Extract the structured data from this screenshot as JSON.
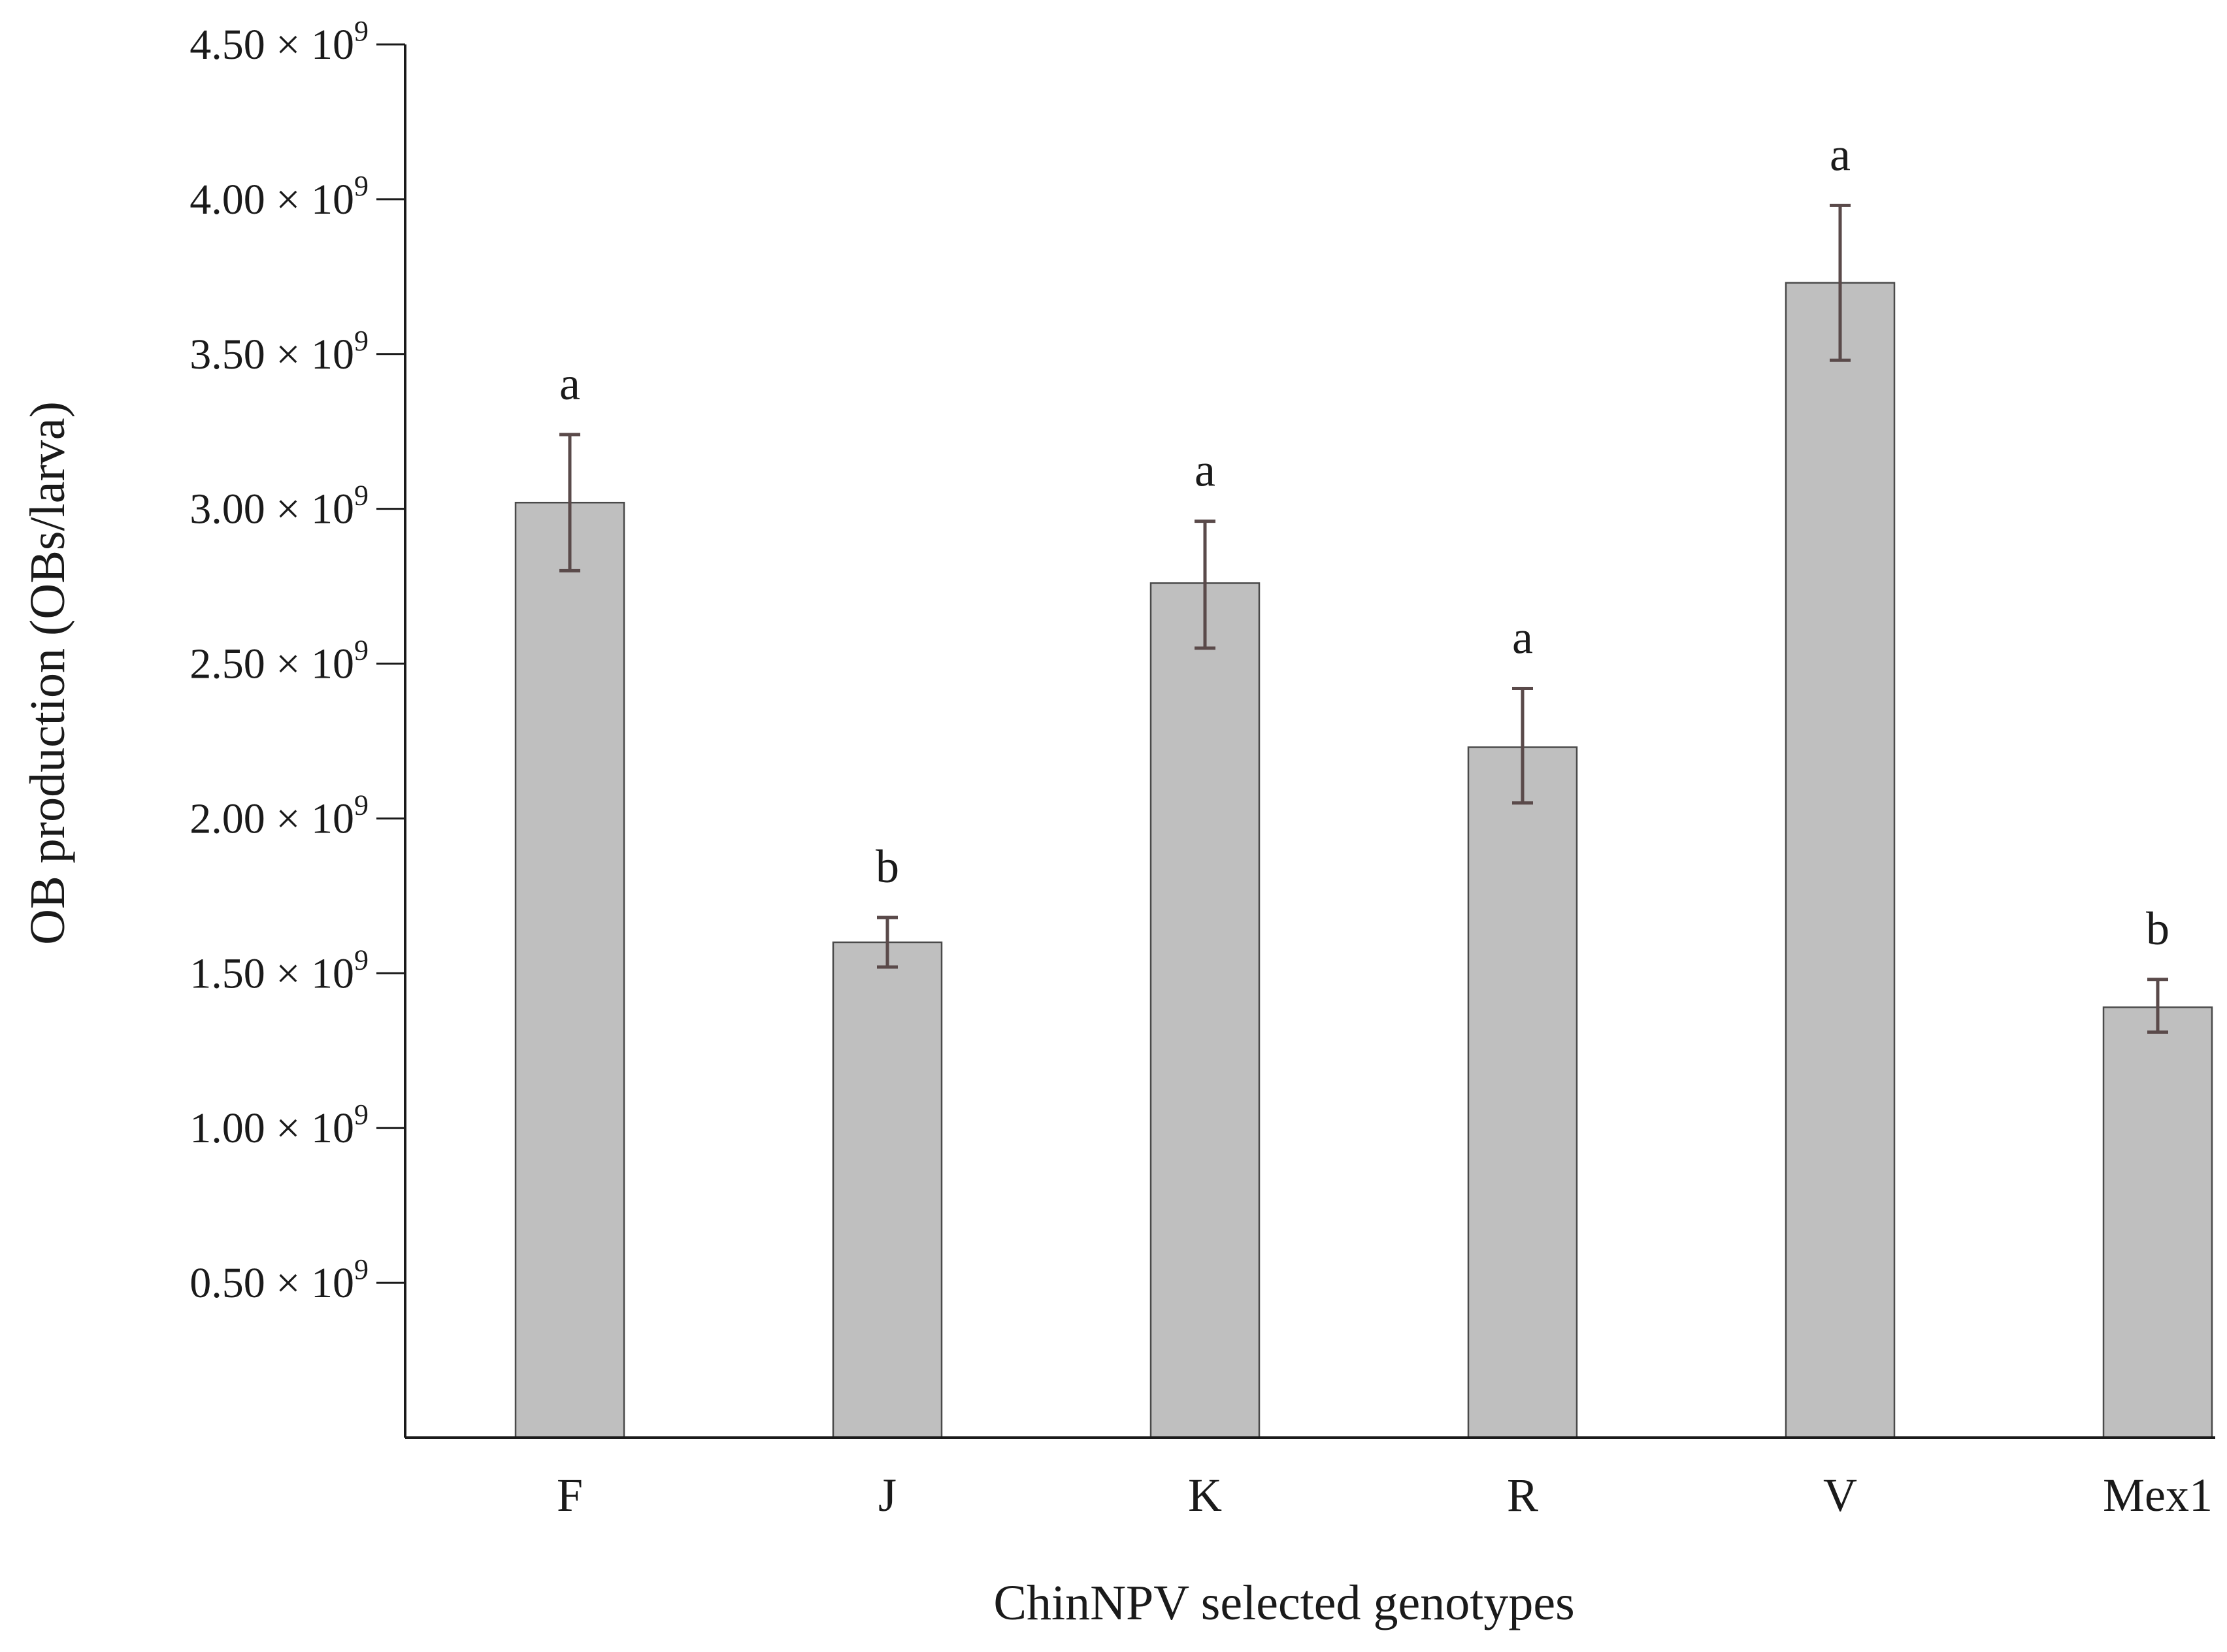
{
  "chart_data": {
    "type": "bar",
    "categories": [
      "F",
      "J",
      "K",
      "R",
      "V",
      "Mex1"
    ],
    "values": [
      3020000000.0,
      1600000000.0,
      2760000000.0,
      2230000000.0,
      3730000000.0,
      1390000000.0
    ],
    "error_upper": [
      3240000000.0,
      1680000000.0,
      2960000000.0,
      2420000000.0,
      3980000000.0,
      1480000000.0
    ],
    "error_lower": [
      2800000000.0,
      1520000000.0,
      2550000000.0,
      2050000000.0,
      3480000000.0,
      1310000000.0
    ],
    "significance_letters": [
      "a",
      "b",
      "a",
      "a",
      "a",
      "b"
    ],
    "ylim": [
      0,
      4500000000.0
    ],
    "yticks": [
      500000000.0,
      1000000000.0,
      1500000000.0,
      2000000000.0,
      2500000000.0,
      3000000000.0,
      3500000000.0,
      4000000000.0,
      4500000000.0
    ],
    "ytick_mantissas": [
      "0.50",
      "1.00",
      "1.50",
      "2.00",
      "2.50",
      "3.00",
      "3.50",
      "4.00",
      "4.50"
    ],
    "ytick_multiplier": "× 10",
    "ytick_exponent": "9",
    "xlabel": "ChinNPV selected genotypes",
    "ylabel": "OB production (OBs/larva)",
    "grid": false,
    "legend": "none",
    "colors": {
      "bar_fill": "#bfbfbf",
      "bar_stroke": "#4a4a4a",
      "error_bar": "#5a4a4a",
      "axis": "#1a1a1a"
    }
  }
}
